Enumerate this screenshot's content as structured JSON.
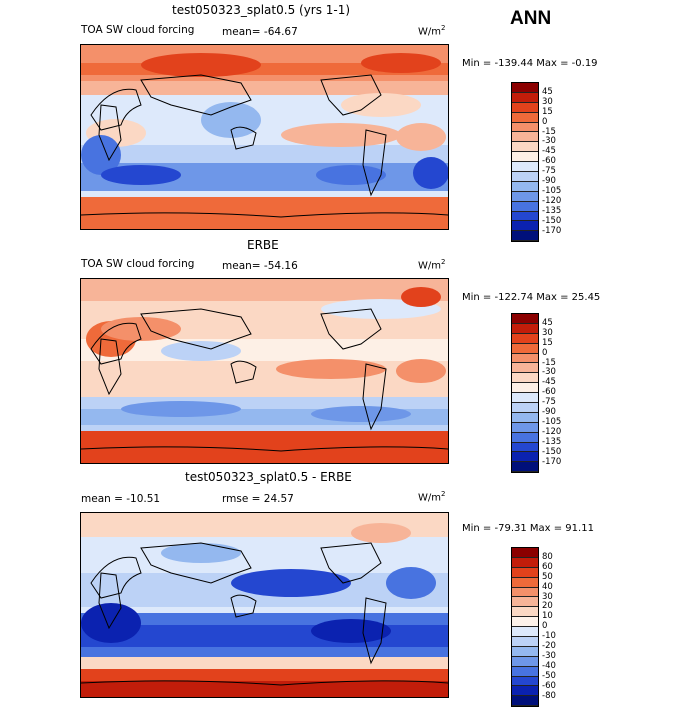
{
  "season": "ANN",
  "panels": [
    {
      "title": "test050323_splat0.5 (yrs 1-1)",
      "left_label": "TOA SW cloud forcing",
      "mean_label": "mean= -64.67",
      "unit": "W/m",
      "unit_sup": "2",
      "minmax": "Min = -139.44  Max =  -0.19",
      "levels": [
        "45",
        "30",
        "15",
        "0",
        "-15",
        "-30",
        "-45",
        "-60",
        "-75",
        "-90",
        "-105",
        "-120",
        "-135",
        "-150",
        "-170"
      ],
      "colors": [
        "#8b0000",
        "#c21d0a",
        "#e2421c",
        "#ef6a3a",
        "#f4906a",
        "#f7b498",
        "#fbd8c4",
        "#fdf0e6",
        "#dde9fb",
        "#bcd2f6",
        "#94b8ef",
        "#6e97e8",
        "#4873e0",
        "#2447d0",
        "#0b22b0",
        "#00107a"
      ]
    },
    {
      "title": "ERBE",
      "left_label": "TOA SW cloud forcing",
      "mean_label": "mean= -54.16",
      "unit": "W/m",
      "unit_sup": "2",
      "minmax": "Min = -122.74  Max =  25.45",
      "levels": [
        "45",
        "30",
        "15",
        "0",
        "-15",
        "-30",
        "-45",
        "-60",
        "-75",
        "-90",
        "-105",
        "-120",
        "-135",
        "-150",
        "-170"
      ],
      "colors": [
        "#8b0000",
        "#c21d0a",
        "#e2421c",
        "#ef6a3a",
        "#f4906a",
        "#f7b498",
        "#fbd8c4",
        "#fdf0e6",
        "#dde9fb",
        "#bcd2f6",
        "#94b8ef",
        "#6e97e8",
        "#4873e0",
        "#2447d0",
        "#0b22b0",
        "#00107a"
      ]
    },
    {
      "title": "test050323_splat0.5 - ERBE",
      "left_label": "mean = -10.51",
      "mean_label": "rmse =  24.57",
      "unit": "W/m",
      "unit_sup": "2",
      "minmax": "Min = -79.31  Max =  91.11",
      "levels": [
        "80",
        "60",
        "50",
        "40",
        "30",
        "20",
        "10",
        "0",
        "-10",
        "-20",
        "-30",
        "-40",
        "-50",
        "-60",
        "-80"
      ],
      "colors": [
        "#8b0000",
        "#c21d0a",
        "#e2421c",
        "#ef6a3a",
        "#f4906a",
        "#f7b498",
        "#fbd8c4",
        "#fdf2ea",
        "#dde9fb",
        "#bcd2f6",
        "#94b8ef",
        "#6e97e8",
        "#4873e0",
        "#2447d0",
        "#0b22b0",
        "#00107a"
      ]
    }
  ]
}
